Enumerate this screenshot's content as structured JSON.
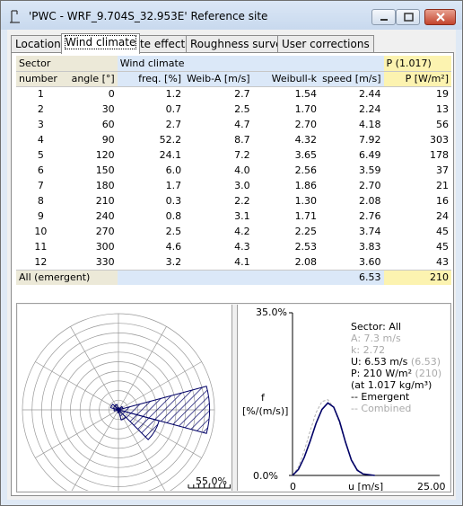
{
  "window": {
    "title": "'PWC - WRF_9.704S_32.953E' Reference site"
  },
  "tabs": [
    {
      "label": "Location"
    },
    {
      "label": "Wind climate"
    },
    {
      "label": "Site effects"
    },
    {
      "label": "Roughness survey"
    },
    {
      "label": "User corrections"
    }
  ],
  "table": {
    "header1": {
      "sector": "Sector",
      "wind_climate": "Wind climate",
      "p_group": "P (1.017)"
    },
    "header2": {
      "number": "number",
      "angle": "angle [°]",
      "freq": "freq. [%]",
      "weib_a": "Weib-A [m/s]",
      "weib_k": "Weibull-k",
      "speed": "speed [m/s]",
      "power": "P [W/m²]"
    },
    "rows": [
      {
        "number": "1",
        "angle": "0",
        "freq": "1.2",
        "a": "2.7",
        "k": "1.54",
        "speed": "2.44",
        "p": "19"
      },
      {
        "number": "2",
        "angle": "30",
        "freq": "0.7",
        "a": "2.5",
        "k": "1.70",
        "speed": "2.24",
        "p": "13"
      },
      {
        "number": "3",
        "angle": "60",
        "freq": "2.7",
        "a": "4.7",
        "k": "2.70",
        "speed": "4.18",
        "p": "56"
      },
      {
        "number": "4",
        "angle": "90",
        "freq": "52.2",
        "a": "8.7",
        "k": "4.32",
        "speed": "7.92",
        "p": "303"
      },
      {
        "number": "5",
        "angle": "120",
        "freq": "24.1",
        "a": "7.2",
        "k": "3.65",
        "speed": "6.49",
        "p": "178"
      },
      {
        "number": "6",
        "angle": "150",
        "freq": "6.0",
        "a": "4.0",
        "k": "2.56",
        "speed": "3.59",
        "p": "37"
      },
      {
        "number": "7",
        "angle": "180",
        "freq": "1.7",
        "a": "3.0",
        "k": "1.86",
        "speed": "2.70",
        "p": "21"
      },
      {
        "number": "8",
        "angle": "210",
        "freq": "0.3",
        "a": "2.2",
        "k": "1.30",
        "speed": "2.08",
        "p": "16"
      },
      {
        "number": "9",
        "angle": "240",
        "freq": "0.8",
        "a": "3.1",
        "k": "1.71",
        "speed": "2.76",
        "p": "24"
      },
      {
        "number": "10",
        "angle": "270",
        "freq": "2.5",
        "a": "4.2",
        "k": "2.25",
        "speed": "3.74",
        "p": "45"
      },
      {
        "number": "11",
        "angle": "300",
        "freq": "4.6",
        "a": "4.3",
        "k": "2.53",
        "speed": "3.83",
        "p": "45"
      },
      {
        "number": "12",
        "angle": "330",
        "freq": "3.2",
        "a": "4.1",
        "k": "2.08",
        "speed": "3.60",
        "p": "43"
      }
    ],
    "all_row": {
      "label": "All (emergent)",
      "speed": "6.53",
      "p": "210"
    }
  },
  "rose": {
    "scale_label": "55.0%",
    "max_percent": 55.0
  },
  "distribution": {
    "y_top_label": "35.0%",
    "y_bottom_label": "0.0%",
    "y_axis_label_line1": "f",
    "y_axis_label_line2": "[%/(m/s)]",
    "x_left_label": "0",
    "x_axis_label": "u [m/s]",
    "x_right_label": "25.00",
    "legend": {
      "sector": "Sector: All",
      "a": "A: 7.3 m/s",
      "k": "k: 2.72",
      "u": "U: 6.53 m/s",
      "u_combined": "(6.53)",
      "p": "P: 210 W/m²",
      "p_combined": "(210)",
      "density": "(at 1.017 kg/m³)",
      "emergent": "-- Emergent",
      "combined": "-- Combined"
    }
  },
  "chart_data": {
    "type": "line",
    "title": "",
    "xlabel": "u [m/s]",
    "ylabel": "f [%/(m/s)]",
    "xlim": [
      0,
      25
    ],
    "ylim": [
      0,
      35
    ],
    "series": [
      {
        "name": "Emergent",
        "x": [
          0,
          1,
          2,
          3,
          4,
          5,
          6,
          7,
          8,
          9,
          10,
          11,
          12,
          14
        ],
        "y": [
          0,
          1.3,
          3.9,
          7.4,
          11.2,
          14.2,
          15.6,
          14.7,
          11.6,
          7.2,
          3.3,
          1.1,
          0.3,
          0
        ]
      },
      {
        "name": "Combined",
        "x": [
          0,
          1,
          2,
          3,
          4,
          5,
          6,
          7,
          8,
          9,
          10,
          11,
          12,
          14
        ],
        "y": [
          0,
          1.8,
          5.3,
          9.6,
          13.5,
          15.9,
          16.3,
          14.6,
          11.2,
          7.0,
          3.5,
          1.3,
          0.4,
          0
        ]
      }
    ]
  }
}
